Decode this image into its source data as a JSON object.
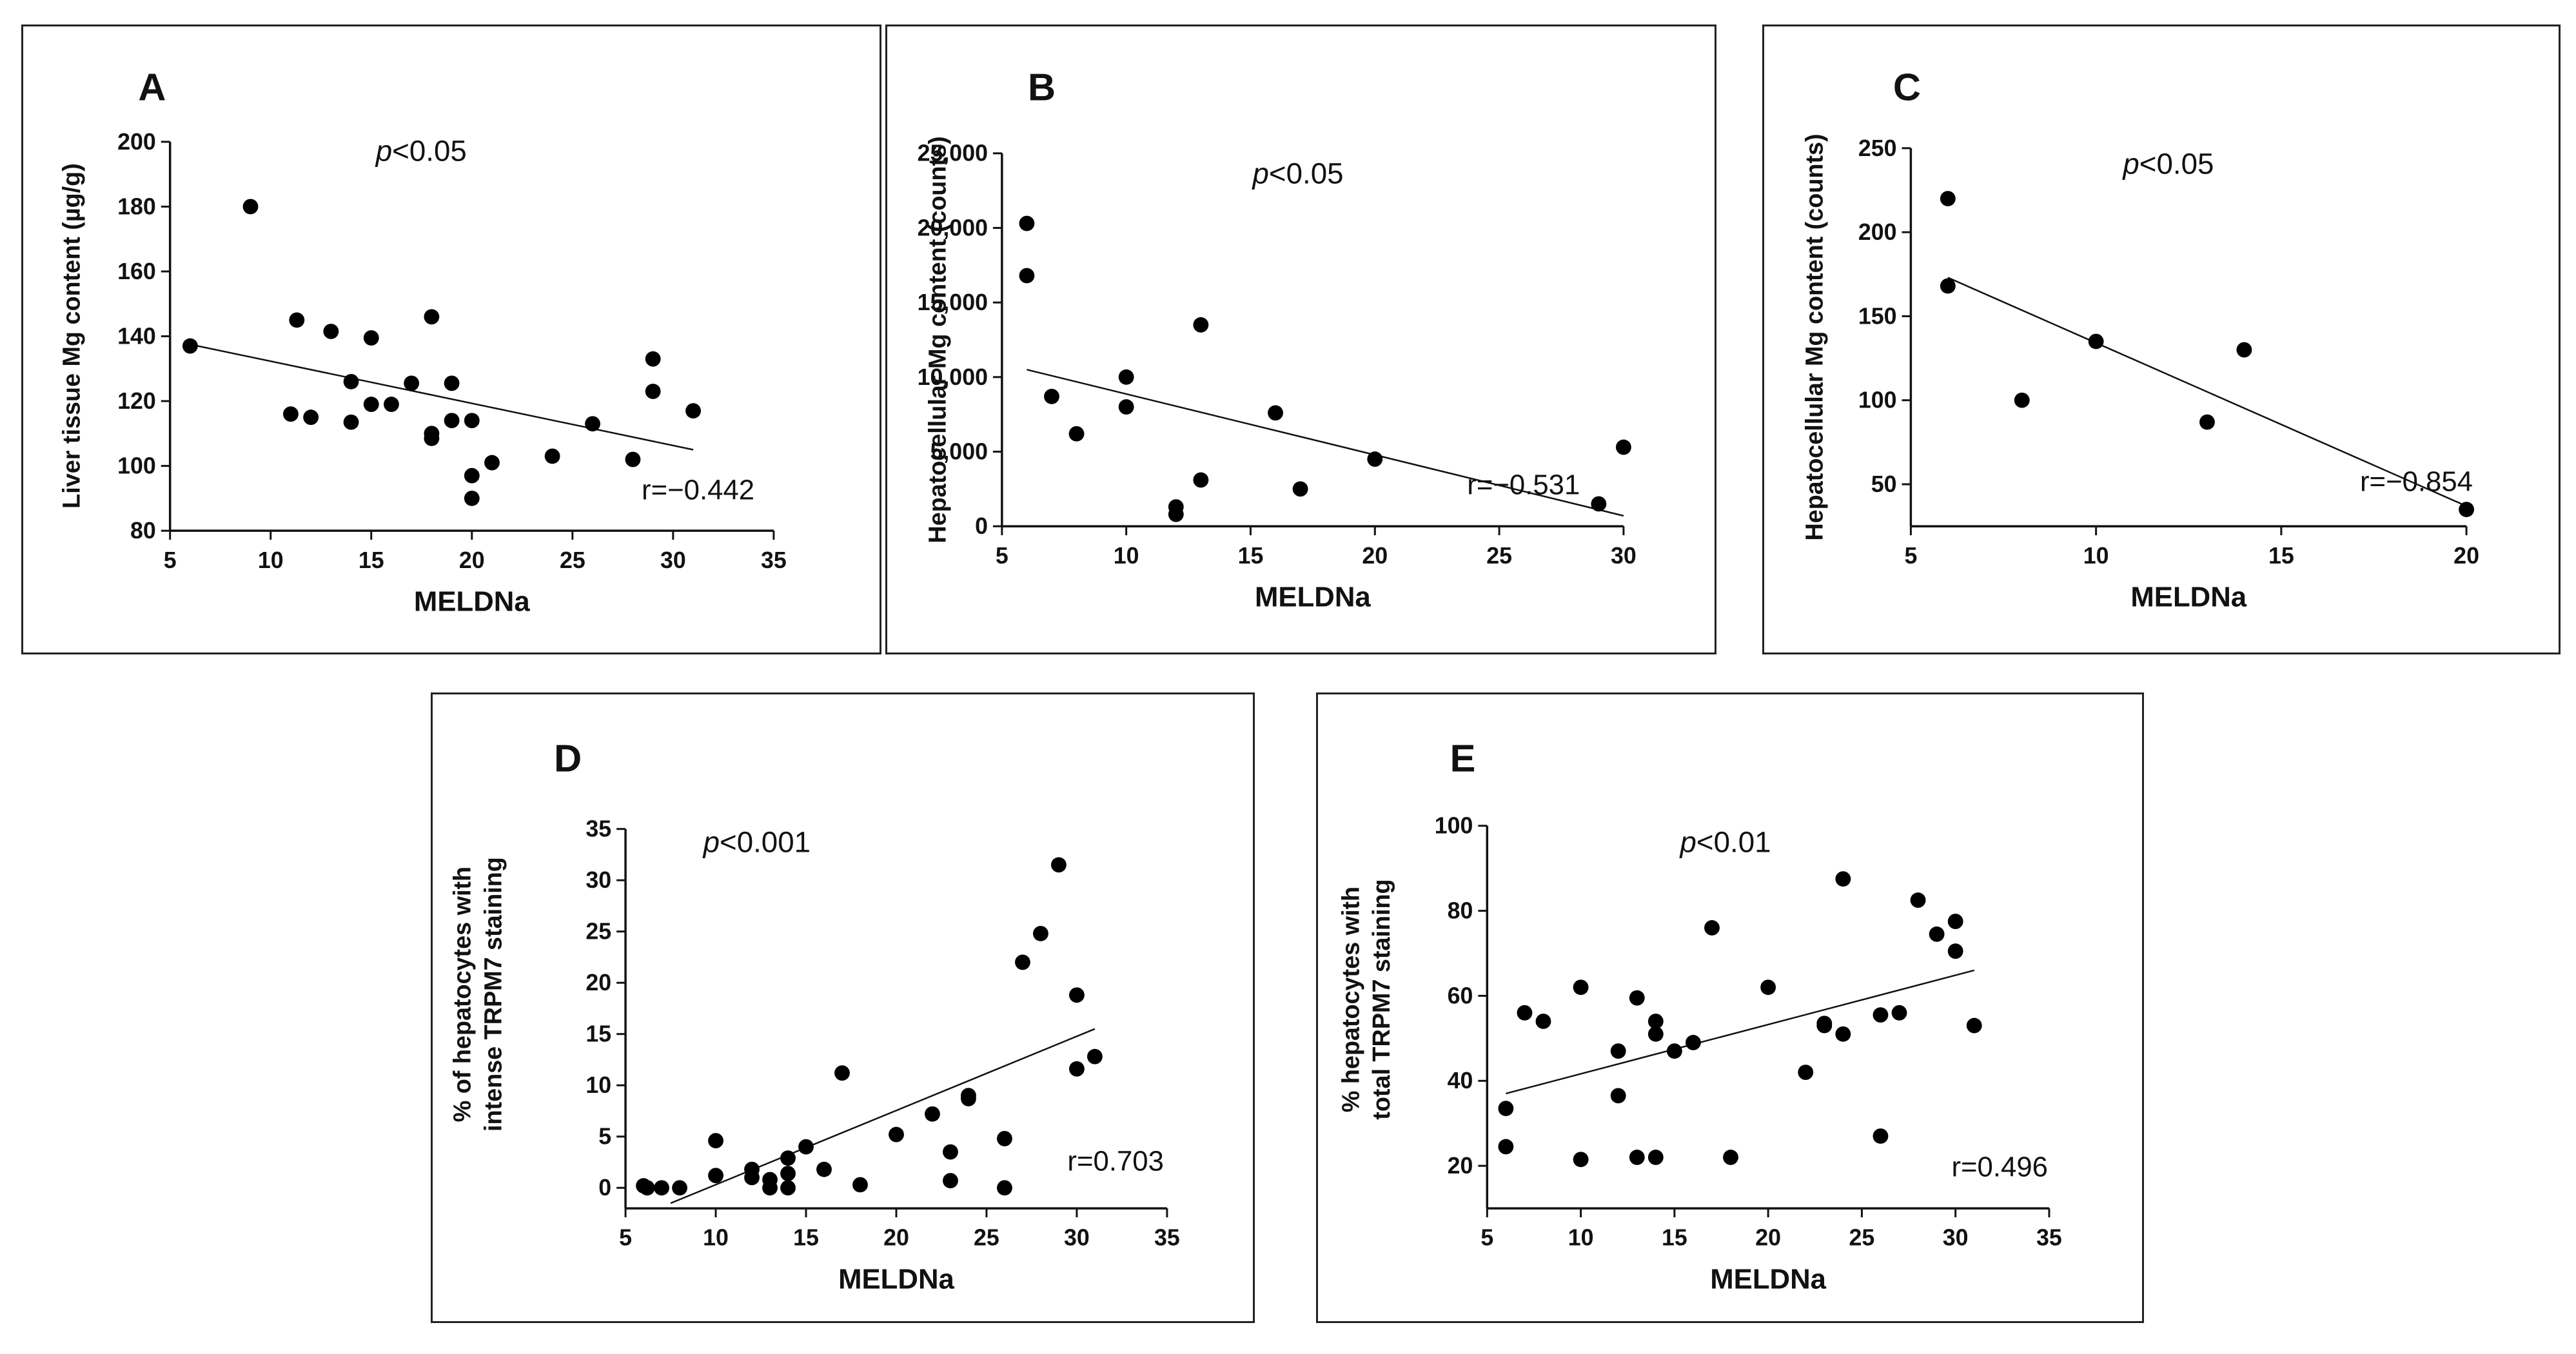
{
  "figure_title": "",
  "chart_data": [
    {
      "id": "A",
      "type": "scatter",
      "panel_label": "A",
      "title": "",
      "xlabel": "MELDNa",
      "ylabel": "Liver tissue Mg content (µg/g)",
      "xlim": [
        5,
        35
      ],
      "ylim": [
        80,
        200
      ],
      "xticks": [
        5,
        10,
        15,
        20,
        25,
        30,
        35
      ],
      "yticks": [
        80,
        100,
        120,
        140,
        160,
        180,
        200
      ],
      "xtick_labels": [
        "5",
        "10",
        "15",
        "20",
        "25",
        "30",
        "35"
      ],
      "ytick_labels": [
        "80",
        "100",
        "120",
        "140",
        "160",
        "180",
        "200"
      ],
      "p_prefix": "p",
      "p_value": "<0.05",
      "r_label": "r=−0.442",
      "fit_line": {
        "x": [
          6,
          31
        ],
        "y": [
          137.5,
          105
        ]
      },
      "points": [
        [
          6,
          137
        ],
        [
          9,
          180
        ],
        [
          11,
          116
        ],
        [
          11.3,
          145
        ],
        [
          12,
          115
        ],
        [
          13,
          141.5
        ],
        [
          14,
          126
        ],
        [
          14,
          113.5
        ],
        [
          15,
          139.5
        ],
        [
          15,
          119
        ],
        [
          16,
          119
        ],
        [
          17,
          125.5
        ],
        [
          18,
          146
        ],
        [
          18,
          110
        ],
        [
          18,
          108.5
        ],
        [
          19,
          125.5
        ],
        [
          19,
          114
        ],
        [
          20,
          114
        ],
        [
          20,
          97
        ],
        [
          20,
          90
        ],
        [
          21,
          101
        ],
        [
          24,
          103
        ],
        [
          26,
          113
        ],
        [
          28,
          102
        ],
        [
          29,
          133
        ],
        [
          29,
          123
        ],
        [
          31,
          117
        ]
      ]
    },
    {
      "id": "B",
      "type": "scatter",
      "panel_label": "B",
      "title": "",
      "xlabel": "MELDNa",
      "ylabel": "Hepatocellular Mg content (counts)",
      "xlim": [
        5,
        30
      ],
      "ylim": [
        0,
        25000
      ],
      "xticks": [
        5,
        10,
        15,
        20,
        25,
        30
      ],
      "yticks": [
        0,
        5000,
        10000,
        15000,
        20000,
        25000
      ],
      "xtick_labels": [
        "5",
        "10",
        "15",
        "20",
        "25",
        "30"
      ],
      "ytick_labels": [
        "0",
        "5,000",
        "10,000",
        "15,000",
        "20,000",
        "25,000"
      ],
      "p_prefix": "p",
      "p_value": "<0.05",
      "r_label": "r=−0.531",
      "fit_line": {
        "x": [
          6,
          30
        ],
        "y": [
          10500,
          700
        ]
      },
      "points": [
        [
          6,
          20300
        ],
        [
          6,
          16800
        ],
        [
          7,
          8700
        ],
        [
          8,
          6200
        ],
        [
          10,
          10000
        ],
        [
          10,
          8000
        ],
        [
          12,
          1300
        ],
        [
          12,
          800
        ],
        [
          13,
          13500
        ],
        [
          13,
          3100
        ],
        [
          16,
          7600
        ],
        [
          17,
          2500
        ],
        [
          20,
          4500
        ],
        [
          29,
          1500
        ],
        [
          30,
          5300
        ]
      ]
    },
    {
      "id": "C",
      "type": "scatter",
      "panel_label": "C",
      "title": "",
      "xlabel": "MELDNa",
      "ylabel": "Hepatocellular Mg content (counts)",
      "xlim": [
        5,
        20
      ],
      "ylim": [
        25,
        250
      ],
      "xticks": [
        5,
        10,
        15,
        20
      ],
      "yticks": [
        50,
        100,
        150,
        200,
        250
      ],
      "xtick_labels": [
        "5",
        "10",
        "15",
        "20"
      ],
      "ytick_labels": [
        "50",
        "100",
        "150",
        "200",
        "250"
      ],
      "p_prefix": "p",
      "p_value": "<0.05",
      "r_label": "r=−0.854",
      "fit_line": {
        "x": [
          6,
          20
        ],
        "y": [
          173,
          37
        ]
      },
      "points": [
        [
          6,
          220
        ],
        [
          6,
          168
        ],
        [
          8,
          100
        ],
        [
          10,
          135
        ],
        [
          13,
          87
        ],
        [
          14,
          130
        ],
        [
          20,
          35
        ]
      ]
    },
    {
      "id": "D",
      "type": "scatter",
      "panel_label": "D",
      "title": "",
      "xlabel": "MELDNa",
      "ylabel_lines": [
        "% of hepatocytes with",
        "intense TRPM7 staining"
      ],
      "xlim": [
        5,
        35
      ],
      "ylim": [
        -2,
        35
      ],
      "xticks": [
        5,
        10,
        15,
        20,
        25,
        30,
        35
      ],
      "yticks": [
        0,
        5,
        10,
        15,
        20,
        25,
        30,
        35
      ],
      "xtick_labels": [
        "5",
        "10",
        "15",
        "20",
        "25",
        "30",
        "35"
      ],
      "ytick_labels": [
        "0",
        "5",
        "10",
        "15",
        "20",
        "25",
        "30",
        "35"
      ],
      "p_prefix": "p",
      "p_value": "<0.001",
      "r_label": "r=0.703",
      "fit_line": {
        "x": [
          7.5,
          31
        ],
        "y": [
          -1.5,
          15.5
        ]
      },
      "points": [
        [
          6,
          0.2
        ],
        [
          6.2,
          0
        ],
        [
          7,
          0
        ],
        [
          8,
          0
        ],
        [
          10,
          4.6
        ],
        [
          10,
          1.2
        ],
        [
          12,
          1.8
        ],
        [
          12,
          1
        ],
        [
          13,
          0.8
        ],
        [
          13,
          0
        ],
        [
          14,
          2.9
        ],
        [
          14,
          1.4
        ],
        [
          14,
          0
        ],
        [
          15,
          4
        ],
        [
          16,
          1.8
        ],
        [
          17,
          11.2
        ],
        [
          18,
          0.3
        ],
        [
          20,
          5.2
        ],
        [
          22,
          7.2
        ],
        [
          23,
          3.5
        ],
        [
          23,
          0.7
        ],
        [
          24,
          9
        ],
        [
          24,
          8.7
        ],
        [
          26,
          4.8
        ],
        [
          26,
          0
        ],
        [
          27,
          22
        ],
        [
          28,
          24.8
        ],
        [
          29,
          31.5
        ],
        [
          30,
          18.8
        ],
        [
          30,
          11.6
        ],
        [
          31,
          12.8
        ]
      ]
    },
    {
      "id": "E",
      "type": "scatter",
      "panel_label": "E",
      "title": "",
      "xlabel": "MELDNa",
      "ylabel_lines": [
        "% hepatocytes with",
        "total TRPM7 staining"
      ],
      "xlim": [
        5,
        35
      ],
      "ylim": [
        10,
        100
      ],
      "xticks": [
        5,
        10,
        15,
        20,
        25,
        30,
        35
      ],
      "yticks": [
        20,
        40,
        60,
        80,
        100
      ],
      "xtick_labels": [
        "5",
        "10",
        "15",
        "20",
        "25",
        "30",
        "35"
      ],
      "ytick_labels": [
        "20",
        "40",
        "60",
        "80",
        "100"
      ],
      "p_prefix": "p",
      "p_value": "<0.01",
      "r_label": "r=0.496",
      "fit_line": {
        "x": [
          6,
          31
        ],
        "y": [
          37,
          66
        ]
      },
      "points": [
        [
          6,
          33.5
        ],
        [
          6,
          24.5
        ],
        [
          7,
          56
        ],
        [
          8,
          54
        ],
        [
          10,
          62
        ],
        [
          10,
          21.5
        ],
        [
          12,
          47
        ],
        [
          12,
          36.5
        ],
        [
          13,
          59.5
        ],
        [
          13,
          22
        ],
        [
          14,
          54
        ],
        [
          14,
          51
        ],
        [
          14,
          22
        ],
        [
          15,
          47
        ],
        [
          16,
          49
        ],
        [
          17,
          76
        ],
        [
          18,
          22
        ],
        [
          20,
          62
        ],
        [
          22,
          42
        ],
        [
          23,
          53.5
        ],
        [
          23,
          53
        ],
        [
          24,
          87.5
        ],
        [
          24,
          51
        ],
        [
          26,
          55.5
        ],
        [
          26,
          27
        ],
        [
          27,
          56
        ],
        [
          28,
          82.5
        ],
        [
          29,
          74.5
        ],
        [
          30,
          77.5
        ],
        [
          30,
          70.5
        ],
        [
          31,
          53
        ]
      ]
    }
  ]
}
